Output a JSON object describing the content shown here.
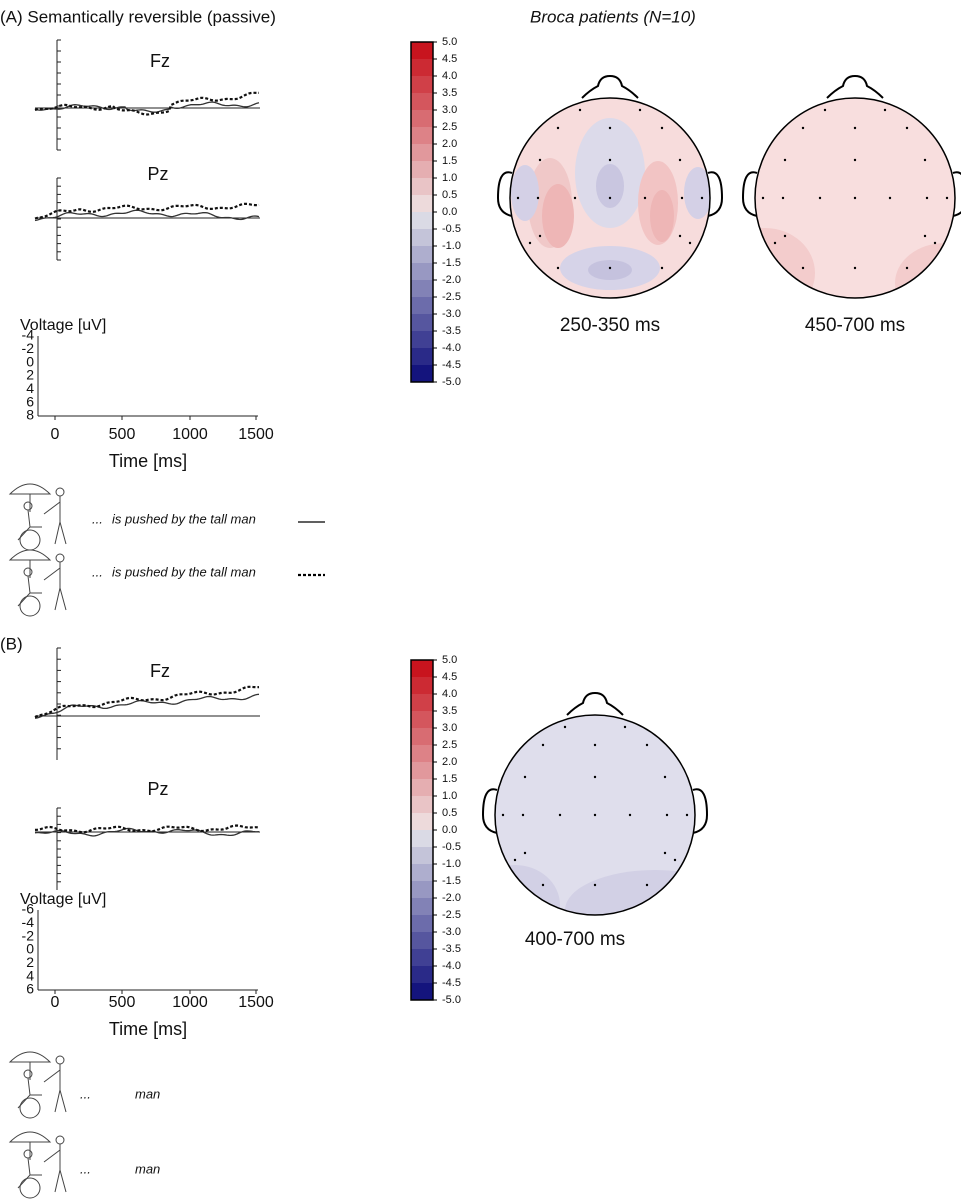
{
  "panel_a": {
    "title": "(A) Semantically reversible (passive)",
    "group_title": "Broca patients (N=10)",
    "channels": [
      "Fz",
      "Pz"
    ],
    "y_axis_label": "Voltage [uV]",
    "y_ticks": [
      "-4",
      "-2",
      "0",
      "2",
      "4",
      "6",
      "8"
    ],
    "x_ticks": [
      "0",
      "500",
      "1000",
      "1500"
    ],
    "x_axis_label": "Time [ms]",
    "conditions": [
      {
        "dots": "...",
        "text": "is pushed by the tall man"
      },
      {
        "dots": "...",
        "text": "is pushed by the tall man"
      }
    ],
    "colorbar_ticks": [
      "5.0",
      "4.5",
      "4.0",
      "3.5",
      "3.0",
      "2.5",
      "2.0",
      "1.5",
      "1.0",
      "0.5",
      "0.0",
      "-0.5",
      "-1.0",
      "-1.5",
      "-2.0",
      "-2.5",
      "-3.0",
      "-3.5",
      "-4.0",
      "-4.5",
      "-5.0"
    ],
    "maps": [
      "250-350 ms",
      "450-700 ms"
    ]
  },
  "panel_b": {
    "title": "(B)",
    "channels": [
      "Fz",
      "Pz"
    ],
    "y_axis_label": "Voltage [uV]",
    "y_ticks": [
      "-6",
      "-4",
      "-2",
      "0",
      "2",
      "4",
      "6"
    ],
    "x_ticks": [
      "0",
      "500",
      "1000",
      "1500"
    ],
    "x_axis_label": "Time [ms]",
    "conditions": [
      {
        "dots": "...",
        "text": "man"
      },
      {
        "dots": "...",
        "text": "man"
      }
    ],
    "colorbar_ticks": [
      "5.0",
      "4.5",
      "4.0",
      "3.5",
      "3.0",
      "2.5",
      "2.0",
      "1.5",
      "1.0",
      "0.5",
      "0.0",
      "-0.5",
      "-1.0",
      "-1.5",
      "-2.0",
      "-2.5",
      "-3.0",
      "-3.5",
      "-4.0",
      "-4.5",
      "-5.0"
    ],
    "maps": [
      "400-700 ms"
    ]
  }
}
